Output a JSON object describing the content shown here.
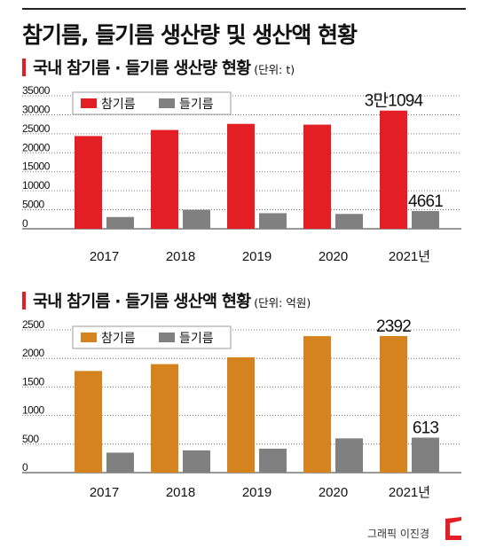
{
  "title": "참기름, 들기름 생산량 및 생산액 현황",
  "credit": "그래픽 이진경",
  "colors": {
    "sesame_volume": "#e31e24",
    "sesame_value": "#d4831f",
    "perilla": "#808080",
    "accent": "#e31e24"
  },
  "chart_data": [
    {
      "type": "bar",
      "title": "국내 참기름 · 들기름 생산량 현황",
      "unit": "(단위: t)",
      "categories": [
        "2017",
        "2018",
        "2019",
        "2020",
        "2021년"
      ],
      "series": [
        {
          "name": "참기름",
          "values": [
            24400,
            26000,
            27600,
            27400,
            31094
          ]
        },
        {
          "name": "들기름",
          "values": [
            3100,
            5000,
            4100,
            3900,
            4661
          ]
        }
      ],
      "yticks": [
        "35000",
        "30000",
        "25000",
        "20000",
        "15000",
        "10000",
        "5000",
        "0"
      ],
      "ylim": [
        0,
        35000
      ],
      "data_labels": [
        {
          "series": 0,
          "index": 4,
          "text": "3만1094"
        },
        {
          "series": 1,
          "index": 4,
          "text": "4661"
        }
      ],
      "legend": "top-left",
      "grid": true
    },
    {
      "type": "bar",
      "title": "국내 참기름 · 들기름 생산액 현황",
      "unit": "(단위: 억원)",
      "categories": [
        "2017",
        "2018",
        "2019",
        "2020",
        "2021년"
      ],
      "series": [
        {
          "name": "참기름",
          "values": [
            1780,
            1900,
            2020,
            2390,
            2392
          ]
        },
        {
          "name": "들기름",
          "values": [
            350,
            390,
            420,
            600,
            613
          ]
        }
      ],
      "yticks": [
        "2500",
        "2000",
        "1500",
        "1000",
        "500",
        "0"
      ],
      "ylim": [
        0,
        2500
      ],
      "data_labels": [
        {
          "series": 0,
          "index": 4,
          "text": "2392"
        },
        {
          "series": 1,
          "index": 4,
          "text": "613"
        }
      ],
      "legend": "top-left",
      "grid": true
    }
  ]
}
